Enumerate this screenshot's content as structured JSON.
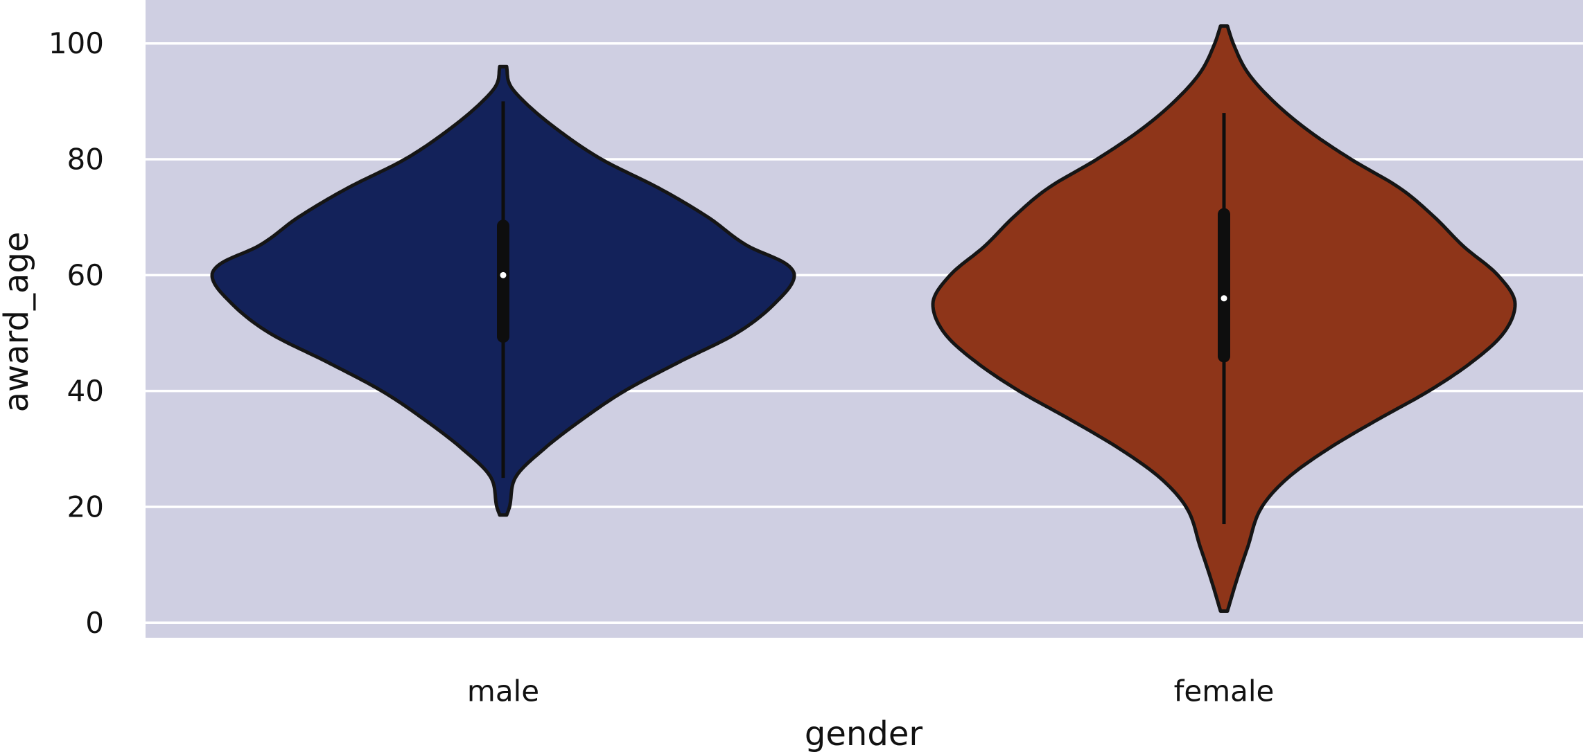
{
  "chart_data": {
    "type": "violin",
    "title": "",
    "xlabel": "gender",
    "ylabel": "award_age",
    "ylim": [
      -2.6,
      107.5
    ],
    "yticks": [
      0,
      20,
      40,
      60,
      80,
      100
    ],
    "ytick_labels": [
      "0",
      "20",
      "40",
      "60",
      "80",
      "100"
    ],
    "grid": "horizontal",
    "background": "#cfcfe2",
    "grid_color": "#ffffff",
    "categories": [
      "male",
      "female"
    ],
    "series": [
      {
        "name": "male",
        "color": "#13225a",
        "range": [
          18.6,
          96.0
        ],
        "whisker": [
          25.0,
          90.0
        ],
        "q1": 49.4,
        "median": 60.0,
        "q3": 68.5,
        "density": [
          [
            18.6,
            0.0
          ],
          [
            20,
            0.01
          ],
          [
            25,
            0.03
          ],
          [
            30,
            0.13
          ],
          [
            35,
            0.26
          ],
          [
            40,
            0.41
          ],
          [
            45,
            0.6
          ],
          [
            50,
            0.8
          ],
          [
            55,
            0.93
          ],
          [
            60,
            1.0
          ],
          [
            62,
            0.97
          ],
          [
            65,
            0.84
          ],
          [
            70,
            0.7
          ],
          [
            75,
            0.53
          ],
          [
            80,
            0.33
          ],
          [
            85,
            0.18
          ],
          [
            90,
            0.06
          ],
          [
            93,
            0.01
          ],
          [
            96,
            0.0
          ]
        ]
      },
      {
        "name": "female",
        "color": "#8e3519",
        "range": [
          2.0,
          103.0
        ],
        "whisker": [
          17.0,
          88.0
        ],
        "q1": 46.0,
        "median": 56.0,
        "q3": 70.5,
        "density": [
          [
            2.0,
            0.0
          ],
          [
            7,
            0.03
          ],
          [
            13,
            0.07
          ],
          [
            20,
            0.12
          ],
          [
            25,
            0.21
          ],
          [
            30,
            0.35
          ],
          [
            35,
            0.52
          ],
          [
            40,
            0.7
          ],
          [
            45,
            0.85
          ],
          [
            50,
            0.96
          ],
          [
            55,
            1.0
          ],
          [
            60,
            0.94
          ],
          [
            65,
            0.82
          ],
          [
            70,
            0.72
          ],
          [
            75,
            0.6
          ],
          [
            80,
            0.43
          ],
          [
            85,
            0.28
          ],
          [
            90,
            0.16
          ],
          [
            95,
            0.07
          ],
          [
            100,
            0.02
          ],
          [
            103,
            0.0
          ]
        ]
      }
    ]
  }
}
